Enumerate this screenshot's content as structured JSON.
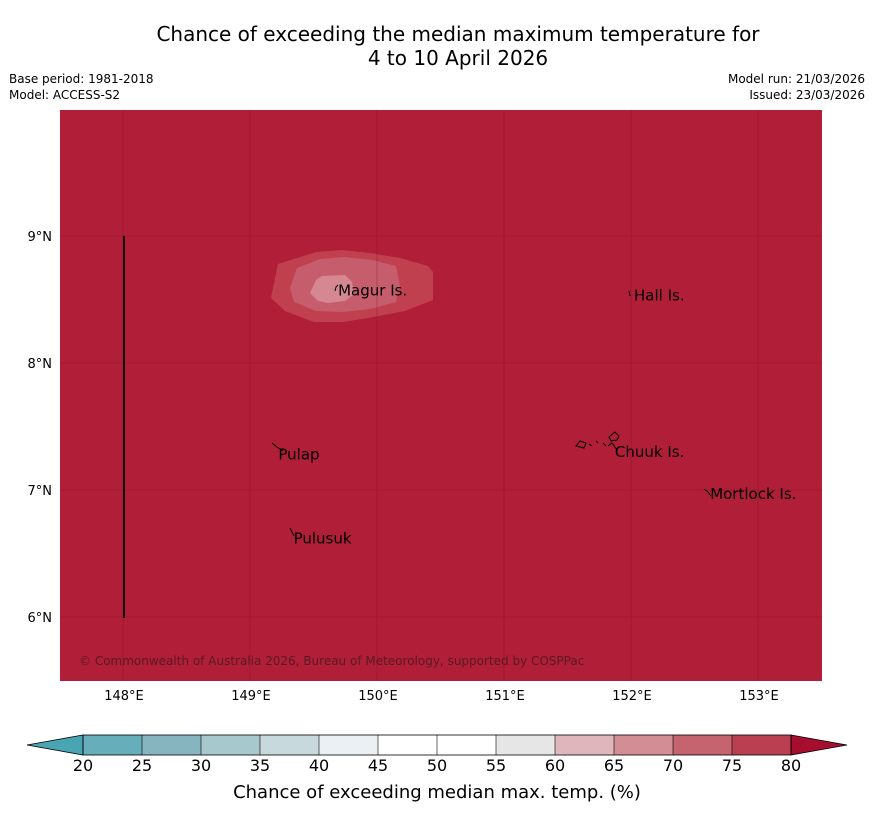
{
  "header": {
    "title_line1": "Chance of exceeding the median maximum temperature for",
    "title_line2": "4 to 10 April 2026",
    "base_period": "Base period: 1981-2018",
    "model": "Model: ACCESS-S2",
    "model_run": "Model run: 21/03/2026",
    "issued": "Issued: 23/03/2026"
  },
  "map": {
    "background_color": "#b01e37",
    "lon_ticks": [
      "148°E",
      "149°E",
      "150°E",
      "151°E",
      "152°E",
      "153°E"
    ],
    "lat_ticks": [
      "9°N",
      "8°N",
      "7°N",
      "6°N"
    ],
    "places": [
      {
        "name": "Magur Is.",
        "lon": 149.67,
        "lat": 8.57
      },
      {
        "name": "Hall Is.",
        "lon": 152.0,
        "lat": 8.53
      },
      {
        "name": "Pulap",
        "lon": 149.2,
        "lat": 7.28
      },
      {
        "name": "Chuuk Is.",
        "lon": 151.85,
        "lat": 7.3
      },
      {
        "name": "Mortlock Is.",
        "lon": 152.6,
        "lat": 6.97
      },
      {
        "name": "Pulusuk",
        "lon": 149.32,
        "lat": 6.62
      }
    ],
    "copyright": "© Commonwealth of Australia 2026, Bureau of Meteorology, supported by COSPPac",
    "contour_colors": [
      "#c0404f",
      "#c65d6c",
      "#d68892"
    ]
  },
  "colorbar": {
    "title": "Chance of exceeding median max. temp. (%)",
    "tick_labels": [
      "20",
      "25",
      "30",
      "35",
      "40",
      "45",
      "50",
      "55",
      "60",
      "65",
      "70",
      "75",
      "80"
    ],
    "colors": [
      "#67aebb",
      "#86b5c0",
      "#a7c8cc",
      "#c8d9de",
      "#eaf0f3",
      "#ffffff",
      "#ffffff",
      "#e6e6e6",
      "#e0b6bd",
      "#d38d95",
      "#c5636f",
      "#b93f51"
    ],
    "under_color": "#4aa5b3",
    "over_color": "#a60d2f"
  }
}
